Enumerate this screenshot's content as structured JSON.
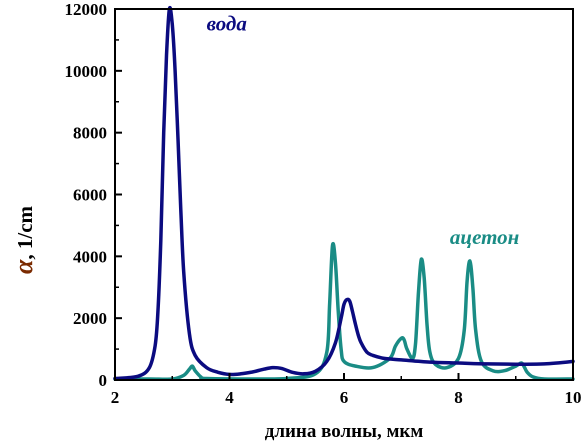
{
  "chart_data": {
    "type": "line",
    "xlabel": "длина волны, мкм",
    "ylabel_symbol": "α",
    "ylabel_unit": ", 1/cm",
    "xlim": [
      2,
      10
    ],
    "ylim": [
      0,
      12000
    ],
    "x_ticks": [
      "2",
      "4",
      "6",
      "8",
      "10"
    ],
    "y_ticks": [
      "0",
      "2000",
      "4000",
      "6000",
      "8000",
      "10000",
      "12000"
    ],
    "grid": false,
    "legend": "inline labels",
    "series": [
      {
        "name": "вода",
        "color": "#0b0b80",
        "x": [
          2.0,
          2.4,
          2.6,
          2.7,
          2.75,
          2.8,
          2.85,
          2.9,
          2.95,
          3.0,
          3.05,
          3.1,
          3.15,
          3.2,
          3.3,
          3.4,
          3.6,
          3.8,
          4.0,
          4.2,
          4.4,
          4.6,
          4.75,
          4.9,
          5.1,
          5.3,
          5.5,
          5.7,
          5.85,
          5.95,
          6.0,
          6.05,
          6.1,
          6.15,
          6.2,
          6.25,
          6.3,
          6.4,
          6.5,
          6.7,
          7.0,
          7.5,
          8.0,
          8.5,
          9.0,
          9.5,
          10.0
        ],
        "y": [
          50,
          120,
          400,
          1100,
          2200,
          4500,
          8000,
          10500,
          12000,
          11500,
          10000,
          7800,
          5500,
          3500,
          1500,
          800,
          400,
          250,
          180,
          200,
          260,
          350,
          400,
          380,
          250,
          200,
          280,
          600,
          1200,
          2000,
          2450,
          2600,
          2550,
          2200,
          1800,
          1450,
          1200,
          900,
          800,
          700,
          650,
          580,
          550,
          520,
          510,
          520,
          600
        ]
      },
      {
        "name": "ацетон",
        "color": "#1a8c85",
        "x": [
          2.0,
          2.6,
          3.0,
          3.2,
          3.3,
          3.35,
          3.4,
          3.5,
          3.6,
          4.5,
          5.0,
          5.5,
          5.7,
          5.75,
          5.8,
          5.85,
          5.9,
          5.95,
          6.0,
          6.2,
          6.5,
          6.8,
          6.9,
          7.0,
          7.05,
          7.1,
          7.2,
          7.25,
          7.3,
          7.35,
          7.4,
          7.45,
          7.5,
          7.6,
          7.8,
          8.0,
          8.1,
          8.15,
          8.2,
          8.25,
          8.3,
          8.4,
          8.6,
          8.8,
          9.0,
          9.1,
          9.15,
          9.2,
          9.3,
          9.5,
          10.0
        ],
        "y": [
          0,
          0,
          30,
          150,
          350,
          450,
          300,
          100,
          50,
          0,
          50,
          200,
          900,
          2500,
          4350,
          3800,
          2200,
          1000,
          600,
          450,
          400,
          700,
          1100,
          1350,
          1300,
          1000,
          700,
          1200,
          2800,
          3900,
          3300,
          1800,
          900,
          500,
          400,
          700,
          1600,
          3200,
          3850,
          3000,
          1600,
          600,
          300,
          300,
          450,
          550,
          420,
          250,
          100,
          30,
          0
        ]
      }
    ],
    "annotations": [
      {
        "text": "вода",
        "x": 3.6,
        "y": 11300,
        "color": "#0b0b80"
      },
      {
        "text": "ацетон",
        "x": 7.85,
        "y": 4400,
        "color": "#1a8c85"
      }
    ]
  }
}
